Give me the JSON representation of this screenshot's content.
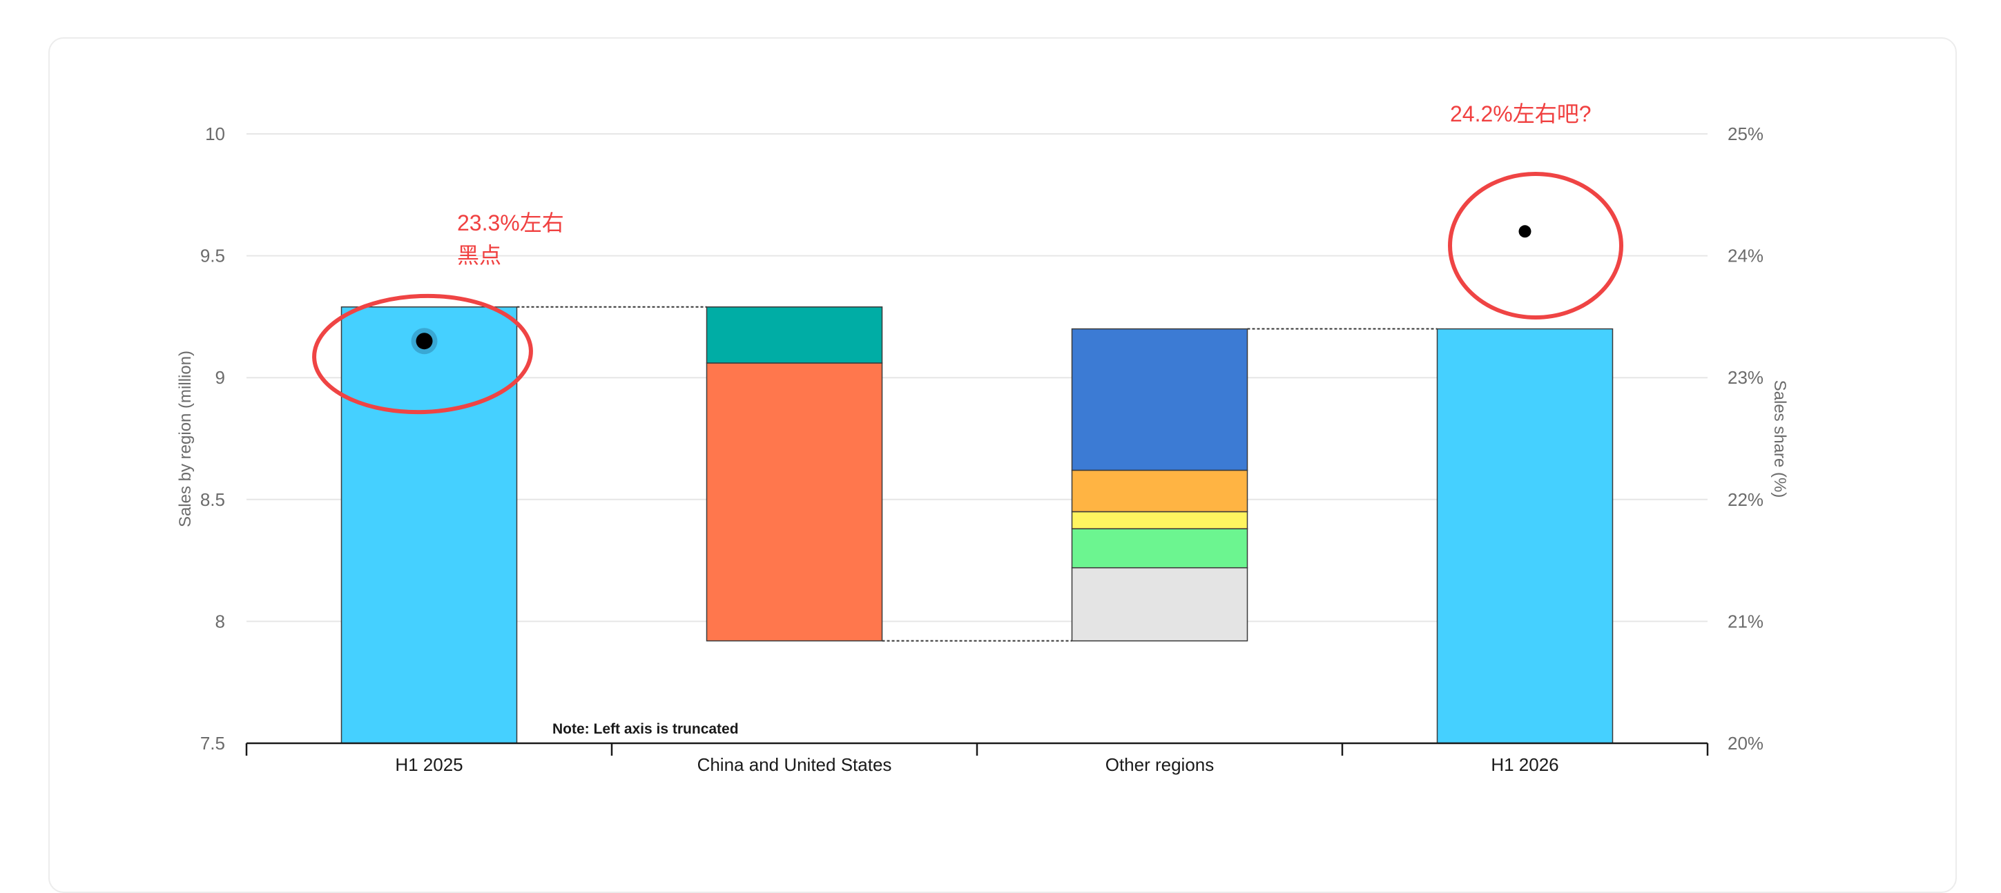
{
  "chart_data": {
    "type": "bar",
    "subtype": "waterfall",
    "categories": [
      "H1 2025",
      "China and United States",
      "Other regions",
      "H1 2026"
    ],
    "y_left": {
      "label": "Sales by region (million)",
      "ticks": [
        "7.5",
        "8",
        "8.5",
        "9",
        "9.5",
        "10"
      ],
      "min": 7.5,
      "max": 10
    },
    "y_right": {
      "label": "Sales share (%)",
      "ticks": [
        "20%",
        "21%",
        "22%",
        "23%",
        "24%",
        "25%"
      ],
      "min": 20,
      "max": 25
    },
    "grid": true,
    "note": "Note: Left axis is truncated",
    "bars": [
      {
        "category": "H1 2025",
        "segments": [
          {
            "from": 7.5,
            "to": 9.29,
            "color": "#45d0ff"
          }
        ]
      },
      {
        "category": "China and United States",
        "segments": [
          {
            "from": 7.92,
            "to": 9.06,
            "color": "#ff774d"
          },
          {
            "from": 9.06,
            "to": 9.29,
            "color": "#00ada5"
          }
        ]
      },
      {
        "category": "Other regions",
        "segments": [
          {
            "from": 7.92,
            "to": 8.22,
            "color": "#e4e4e4"
          },
          {
            "from": 8.22,
            "to": 8.38,
            "color": "#6cf590"
          },
          {
            "from": 8.38,
            "to": 8.45,
            "color": "#fff560"
          },
          {
            "from": 8.45,
            "to": 8.62,
            "color": "#ffb443"
          },
          {
            "from": 8.62,
            "to": 9.2,
            "color": "#3c7bd4"
          }
        ]
      },
      {
        "category": "H1 2026",
        "segments": [
          {
            "from": 7.5,
            "to": 9.2,
            "color": "#45d0ff"
          }
        ]
      }
    ],
    "connectors": [
      {
        "from_bar": 0,
        "to_bar": 1,
        "value": 9.29
      },
      {
        "from_bar": 1,
        "to_bar": 2,
        "value": 7.92
      },
      {
        "from_bar": 2,
        "to_bar": 3,
        "value": 9.2
      }
    ],
    "share_points": [
      {
        "category": "H1 2025",
        "share": 23.3
      },
      {
        "category": "H1 2026",
        "share": 24.2
      }
    ],
    "annotations": [
      {
        "category": "H1 2025",
        "lines": [
          "23.3%左右",
          "黑点"
        ],
        "color": "#f04040"
      },
      {
        "category": "H1 2026",
        "lines": [
          "24.2%左右吧?"
        ],
        "color": "#f04040"
      }
    ]
  }
}
